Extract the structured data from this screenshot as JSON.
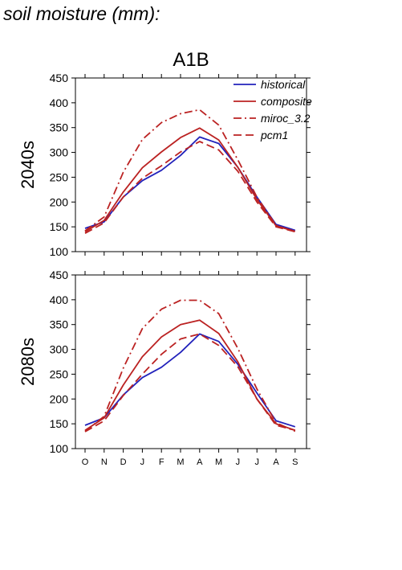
{
  "page_title": "soil moisture (mm):",
  "colors": {
    "historical": "#2222bb",
    "composite": "#bb2222",
    "axis": "#000000"
  },
  "chart_data": [
    {
      "type": "line",
      "title": "A1B",
      "ylabel": "2040s",
      "ylim": [
        100,
        450
      ],
      "yticks": [
        100,
        150,
        200,
        250,
        300,
        350,
        400,
        450
      ],
      "categories": [
        "O",
        "N",
        "D",
        "J",
        "F",
        "M",
        "A",
        "M",
        "J",
        "J",
        "A",
        "S"
      ],
      "legend_position": "top-right",
      "series": [
        {
          "name": "historical",
          "style": "solid",
          "color": "#2222bb",
          "values": [
            147,
            160,
            210,
            243,
            264,
            294,
            331,
            318,
            270,
            210,
            155,
            143
          ]
        },
        {
          "name": "composite",
          "style": "solid",
          "color": "#bb2222",
          "values": [
            140,
            163,
            220,
            269,
            301,
            330,
            349,
            325,
            270,
            205,
            152,
            141
          ]
        },
        {
          "name": "miroc_3.2",
          "style": "dashdot",
          "color": "#bb2222",
          "values": [
            142,
            170,
            260,
            326,
            360,
            378,
            386,
            355,
            285,
            210,
            153,
            140
          ]
        },
        {
          "name": "pcm1",
          "style": "dashed",
          "color": "#bb2222",
          "values": [
            137,
            158,
            210,
            248,
            273,
            301,
            322,
            305,
            262,
            200,
            150,
            140
          ]
        }
      ]
    },
    {
      "type": "line",
      "ylabel": "2080s",
      "ylim": [
        100,
        450
      ],
      "yticks": [
        100,
        150,
        200,
        250,
        300,
        350,
        400,
        450
      ],
      "categories": [
        "O",
        "N",
        "D",
        "J",
        "F",
        "M",
        "A",
        "M",
        "J",
        "J",
        "A",
        "S"
      ],
      "series": [
        {
          "name": "historical",
          "style": "solid",
          "color": "#2222bb",
          "values": [
            147,
            162,
            208,
            243,
            264,
            294,
            331,
            316,
            270,
            212,
            156,
            144
          ]
        },
        {
          "name": "composite",
          "style": "solid",
          "color": "#bb2222",
          "values": [
            137,
            162,
            228,
            285,
            325,
            350,
            359,
            332,
            275,
            200,
            150,
            137
          ]
        },
        {
          "name": "miroc_3.2",
          "style": "dashdot",
          "color": "#bb2222",
          "values": [
            135,
            165,
            262,
            342,
            381,
            399,
            399,
            372,
            302,
            220,
            152,
            135
          ]
        },
        {
          "name": "pcm1",
          "style": "dashed",
          "color": "#bb2222",
          "values": [
            134,
            156,
            207,
            250,
            290,
            321,
            331,
            308,
            265,
            200,
            147,
            137
          ]
        }
      ]
    }
  ]
}
